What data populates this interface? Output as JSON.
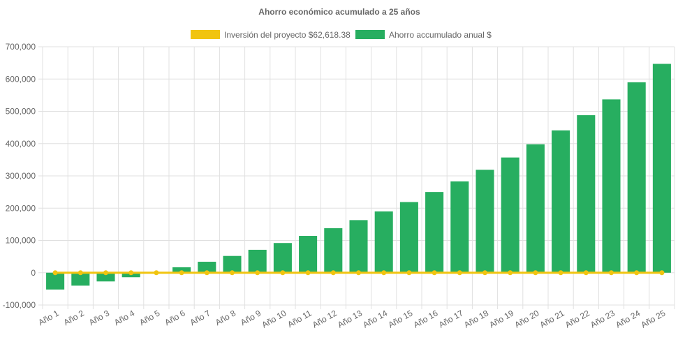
{
  "chart_data": {
    "type": "bar",
    "title": "Ahorro económico acumulado a 25 años",
    "xlabel": "",
    "ylabel": "",
    "categories": [
      "Año 1",
      "Año 2",
      "Año 3",
      "Año 4",
      "Año 5",
      "Año 6",
      "Año 7",
      "Año 8",
      "Año 9",
      "Año 10",
      "Año 11",
      "Año 12",
      "Año 13",
      "Año 14",
      "Año 15",
      "Año 16",
      "Año 17",
      "Año 18",
      "Año 19",
      "Año 20",
      "Año 21",
      "Año 22",
      "Año 23",
      "Año 24",
      "Año 25"
    ],
    "series": [
      {
        "name": "Inversión del proyecto $62,618.38",
        "type": "line",
        "color": "#f1c40f",
        "values": [
          0,
          0,
          0,
          0,
          0,
          0,
          0,
          0,
          0,
          0,
          0,
          0,
          0,
          0,
          0,
          0,
          0,
          0,
          0,
          0,
          0,
          0,
          0,
          0,
          0
        ]
      },
      {
        "name": "Ahorro accumulado anual $",
        "type": "bar",
        "color": "#27ae60",
        "values": [
          -52000,
          -40000,
          -27000,
          -14000,
          0,
          17000,
          34000,
          52000,
          71000,
          92000,
          114000,
          138000,
          163000,
          190000,
          219000,
          250000,
          283000,
          319000,
          357000,
          398000,
          441000,
          488000,
          537000,
          590000,
          647000
        ]
      }
    ],
    "ylim": [
      -100000,
      700000
    ],
    "yticks": [
      "700,000",
      "600,000",
      "500,000",
      "400,000",
      "300,000",
      "200,000",
      "100,000",
      "0",
      "-100,000"
    ],
    "ytick_values": [
      700000,
      600000,
      500000,
      400000,
      300000,
      200000,
      100000,
      0,
      -100000
    ],
    "grid": true,
    "legend": "top-center"
  }
}
